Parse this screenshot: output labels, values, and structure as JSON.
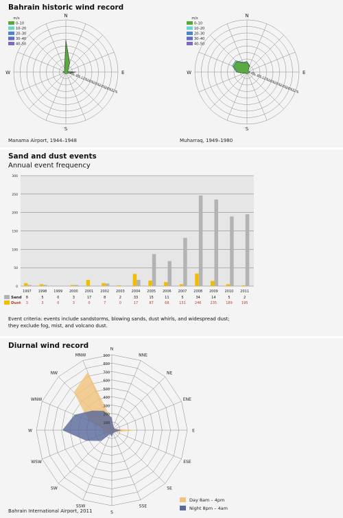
{
  "panel1": {
    "title": "Bahrain historic wind record",
    "roses": [
      {
        "caption": "Manama Airport, 1944–1948",
        "directions": [
          "N",
          "E",
          "S",
          "W"
        ],
        "legend_title": "m/s",
        "legend": [
          {
            "label": "0–10",
            "color": "#5aa83a"
          },
          {
            "label": "10–20",
            "color": "#66d4cf"
          },
          {
            "label": "20–30",
            "color": "#4a86c8"
          },
          {
            "label": "30–40",
            "color": "#5c6dc6"
          },
          {
            "label": "40–50",
            "color": "#8266c4"
          }
        ],
        "pct_labels": [
          "4%",
          "8%",
          "12%",
          "16%",
          "20%",
          "24%",
          "28%",
          "32%"
        ],
        "sectors_0_10": [
          19,
          6,
          2,
          1,
          6,
          2,
          1,
          1,
          1,
          1,
          1,
          1,
          2,
          1,
          1,
          2
        ],
        "sectors_10_20": [
          0.6,
          0.2,
          0,
          0,
          0.2,
          0,
          0,
          0,
          0,
          0,
          0,
          0,
          0,
          0,
          0,
          0.2
        ]
      },
      {
        "caption": "Muharraq, 1949–1980",
        "directions": [
          "N",
          "E",
          "S",
          "W"
        ],
        "legend_title": "m/s",
        "legend": [
          {
            "label": "0–10",
            "color": "#5aa83a"
          },
          {
            "label": "10–20",
            "color": "#66d4cf"
          },
          {
            "label": "20–30",
            "color": "#4a86c8"
          },
          {
            "label": "30–40",
            "color": "#5c6dc6"
          },
          {
            "label": "40–50",
            "color": "#8266c4"
          }
        ],
        "pct_labels": [
          "4%",
          "8%",
          "12%",
          "16%",
          "20%",
          "24%",
          "28%",
          "32%"
        ],
        "sectors_0_10": [
          6,
          4,
          1,
          1,
          2,
          1,
          1,
          1,
          1,
          1,
          1,
          2,
          6,
          9,
          9,
          6
        ],
        "sectors_10_20": [
          0.5,
          0.3,
          0,
          0,
          0.2,
          0,
          0,
          0,
          0,
          0,
          0,
          0,
          0.5,
          0.8,
          0.8,
          0.5
        ]
      }
    ]
  },
  "panel2": {
    "title": "Sand and dust events",
    "subtitle": "Annual event frequency",
    "criteria_line1": "Event criteria: events include sandstorms, blowing sands, dust whirls, and widespread dust;",
    "criteria_line2": "they exclude fog, mist, and volcano dust."
  },
  "chart_data": {
    "type": "bar",
    "ylim": [
      0,
      300
    ],
    "yticks": [
      0,
      50,
      100,
      150,
      200,
      250,
      300
    ],
    "categories": [
      "1997",
      "1998",
      "1999",
      "2000",
      "2001",
      "2002",
      "2003",
      "2004",
      "2005",
      "2006",
      "2007",
      "2008",
      "2009",
      "2010",
      "2011"
    ],
    "series": [
      {
        "name": "Sand",
        "color": "#b3b3b3",
        "labelColor": "#111111",
        "values": [
          8,
          5,
          0,
          3,
          17,
          8,
          2,
          33,
          15,
          11,
          5,
          34,
          14,
          5,
          2
        ]
      },
      {
        "name": "Dust",
        "color": "#f2bd00",
        "labelColor": "#c0392b",
        "values": [
          3,
          3,
          0,
          3,
          0,
          7,
          0,
          17,
          87,
          68,
          131,
          246,
          235,
          189,
          195
        ]
      }
    ]
  },
  "panel3": {
    "title": "Diurnal wind record",
    "caption": "Bahrain International Airport, 2011",
    "directions": [
      "N",
      "NNE",
      "NE",
      "ENE",
      "E",
      "ESE",
      "SE",
      "SSE",
      "S",
      "SSW",
      "SW",
      "WSW",
      "W",
      "WNW",
      "NW",
      "MNW"
    ],
    "rlabels": [
      "100",
      "200",
      "300",
      "400",
      "500",
      "600",
      "700",
      "800",
      "900"
    ],
    "rmax": 900,
    "series": [
      {
        "name": "Day 8am – 4pm",
        "color": "#f0c27b",
        "values": [
          120,
          40,
          30,
          40,
          300,
          60,
          40,
          30,
          40,
          50,
          60,
          100,
          80,
          300,
          640,
          750
        ]
      },
      {
        "name": "Night 8pm – 4am",
        "color": "#57689a",
        "values": [
          150,
          50,
          40,
          40,
          120,
          50,
          40,
          40,
          80,
          50,
          180,
          330,
          590,
          480,
          330,
          250
        ]
      }
    ]
  }
}
